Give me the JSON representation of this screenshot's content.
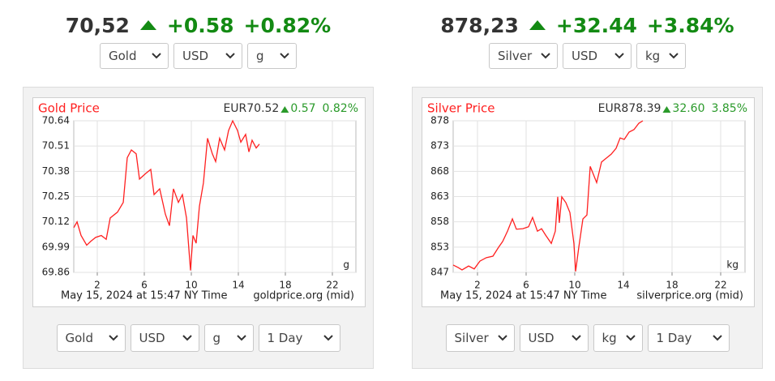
{
  "widgets": [
    {
      "price": "70,52",
      "change": "+0.58",
      "change_percent": "+0.82%",
      "selectors": [
        "Gold",
        "USD",
        "g"
      ],
      "chart_selectors": [
        "Gold",
        "USD",
        "g",
        "1 Day"
      ]
    },
    {
      "price": "878,23",
      "change": "+32.44",
      "change_percent": "+3.84%",
      "selectors": [
        "Silver",
        "USD",
        "kg"
      ],
      "chart_selectors": [
        "Silver",
        "USD",
        "kg",
        "1 Day"
      ]
    }
  ],
  "chart_data": [
    {
      "type": "line",
      "title": "Gold Price",
      "quote": "EUR70.52",
      "quote_change": "0.57",
      "quote_change_percent": "0.82%",
      "unit": "g",
      "timestamp": "May 15, 2024 at 15:47 NY Time",
      "source": "goldprice.org (mid)",
      "x": [
        0,
        0.28,
        0.62,
        1.1,
        1.45,
        1.86,
        2.34,
        2.76,
        3.1,
        3.72,
        4.21,
        4.55,
        4.9,
        5.31,
        5.59,
        6.14,
        6.55,
        6.83,
        7.31,
        7.79,
        8.14,
        8.48,
        8.9,
        9.24,
        9.59,
        9.93,
        10.14,
        10.41,
        10.69,
        11.03,
        11.38,
        11.79,
        12.07,
        12.41,
        12.83,
        13.17,
        13.52,
        13.93,
        14.21,
        14.62,
        14.9,
        15.17,
        15.52,
        15.79
      ],
      "series": [
        {
          "color": "#ff2020",
          "values": [
            70.09,
            70.12,
            70.05,
            70.0,
            70.02,
            70.04,
            70.05,
            70.03,
            70.14,
            70.17,
            70.22,
            70.45,
            70.49,
            70.47,
            70.34,
            70.37,
            70.39,
            70.26,
            70.29,
            70.16,
            70.1,
            70.29,
            70.22,
            70.26,
            70.14,
            69.87,
            70.05,
            70.01,
            70.2,
            70.32,
            70.55,
            70.47,
            70.43,
            70.55,
            70.49,
            70.59,
            70.64,
            70.59,
            70.53,
            70.57,
            70.48,
            70.54,
            70.5,
            70.52
          ]
        }
      ],
      "xlim": [
        0,
        24
      ],
      "xticks": [
        2,
        6,
        10,
        14,
        18,
        22
      ],
      "ylim": [
        69.86,
        70.64
      ],
      "yticks": [
        69.86,
        69.99,
        70.12,
        70.25,
        70.38,
        70.51,
        70.64
      ],
      "grid": true
    },
    {
      "type": "line",
      "title": "Silver Price",
      "quote": "EUR878.39",
      "quote_change": "32.60",
      "quote_change_percent": "3.85%",
      "unit": "kg",
      "timestamp": "May 15, 2024 at 15:47 NY Time",
      "source": "silverprice.org (mid)",
      "x": [
        0,
        0.4,
        0.73,
        1.27,
        1.73,
        2.2,
        2.73,
        3.27,
        3.73,
        4.07,
        4.47,
        4.87,
        5.2,
        5.73,
        6.2,
        6.53,
        6.93,
        7.27,
        7.6,
        8.07,
        8.4,
        8.6,
        8.73,
        8.93,
        9.27,
        9.6,
        9.93,
        10.07,
        10.33,
        10.67,
        11.0,
        11.27,
        11.53,
        11.8,
        12.2,
        12.6,
        13.0,
        13.4,
        13.73,
        14.07,
        14.47,
        14.87,
        15.27,
        15.6
      ],
      "series": [
        {
          "color": "#ff2020",
          "values": [
            848.9,
            848.4,
            847.9,
            848.7,
            848.1,
            849.7,
            850.4,
            850.7,
            852.5,
            853.7,
            855.8,
            858.3,
            856.2,
            856.3,
            856.7,
            858.6,
            855.8,
            856.3,
            855.0,
            853.3,
            855.8,
            862.8,
            857.5,
            862.8,
            861.6,
            859.6,
            853.3,
            847.6,
            852.5,
            858.3,
            859.1,
            869.0,
            867.4,
            865.7,
            869.9,
            870.7,
            871.5,
            872.7,
            874.8,
            874.5,
            876.0,
            876.5,
            877.8,
            878.3
          ]
        }
      ],
      "xlim": [
        0,
        24
      ],
      "xticks": [
        2,
        6,
        10,
        14,
        18,
        22
      ],
      "ylim": [
        847.4,
        878.3
      ],
      "yticks": [
        {
          "value": 847.4,
          "label": "847"
        },
        {
          "value": 852.55,
          "label": "853"
        },
        {
          "value": 857.7,
          "label": "858"
        },
        {
          "value": 862.85,
          "label": "863"
        },
        {
          "value": 868.0,
          "label": "868"
        },
        {
          "value": 873.15,
          "label": "873"
        },
        {
          "value": 878.3,
          "label": "878"
        }
      ],
      "grid": true
    }
  ]
}
